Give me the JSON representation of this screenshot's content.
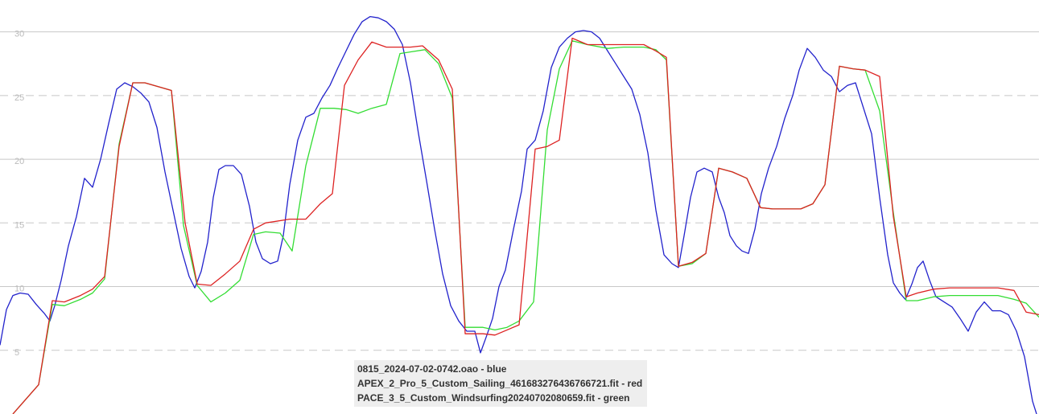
{
  "chart_data": {
    "type": "line",
    "xlim": [
      0,
      1291
    ],
    "ylim": [
      0,
      32.5
    ],
    "grid": {
      "solid": [
        10,
        20,
        30
      ],
      "dashed": [
        5,
        15,
        25
      ]
    },
    "y_ticks": [
      "5",
      "10",
      "15",
      "20",
      "25",
      "30"
    ],
    "y_tick_values": [
      5,
      10,
      15,
      20,
      25,
      30
    ],
    "legend_position": "bottom-center",
    "series": [
      {
        "name": "0815_2024-07-02-0742.oao - blue",
        "color": "#2222cc",
        "points": [
          [
            0,
            5.4
          ],
          [
            8,
            8.2
          ],
          [
            16,
            9.3
          ],
          [
            25,
            9.5
          ],
          [
            35,
            9.4
          ],
          [
            45,
            8.6
          ],
          [
            55,
            7.9
          ],
          [
            62,
            7.3
          ],
          [
            68,
            8.5
          ],
          [
            76,
            10.5
          ],
          [
            85,
            13.2
          ],
          [
            95,
            15.5
          ],
          [
            105,
            18.5
          ],
          [
            115,
            17.8
          ],
          [
            125,
            20
          ],
          [
            135,
            22.8
          ],
          [
            145,
            25.5
          ],
          [
            155,
            26
          ],
          [
            165,
            25.7
          ],
          [
            175,
            25.2
          ],
          [
            185,
            24.5
          ],
          [
            195,
            22.5
          ],
          [
            205,
            19
          ],
          [
            215,
            16
          ],
          [
            225,
            13
          ],
          [
            235,
            10.8
          ],
          [
            242,
            9.9
          ],
          [
            250,
            11.2
          ],
          [
            258,
            13.5
          ],
          [
            265,
            17
          ],
          [
            272,
            19.2
          ],
          [
            280,
            19.5
          ],
          [
            290,
            19.5
          ],
          [
            300,
            18.8
          ],
          [
            310,
            16.3
          ],
          [
            318,
            13.5
          ],
          [
            326,
            12.2
          ],
          [
            336,
            11.8
          ],
          [
            345,
            12
          ],
          [
            352,
            14
          ],
          [
            360,
            18
          ],
          [
            370,
            21.5
          ],
          [
            380,
            23.3
          ],
          [
            390,
            23.6
          ],
          [
            400,
            24.8
          ],
          [
            410,
            25.8
          ],
          [
            420,
            27.2
          ],
          [
            430,
            28.5
          ],
          [
            440,
            29.8
          ],
          [
            450,
            30.8
          ],
          [
            460,
            31.2
          ],
          [
            470,
            31.1
          ],
          [
            480,
            30.8
          ],
          [
            490,
            30.2
          ],
          [
            500,
            29
          ],
          [
            510,
            26
          ],
          [
            520,
            22
          ],
          [
            530,
            18.3
          ],
          [
            540,
            14.5
          ],
          [
            550,
            11
          ],
          [
            560,
            8.5
          ],
          [
            570,
            7.3
          ],
          [
            580,
            6.5
          ],
          [
            590,
            6.5
          ],
          [
            597,
            4.8
          ],
          [
            605,
            6.2
          ],
          [
            612,
            7.5
          ],
          [
            620,
            10
          ],
          [
            628,
            11.3
          ],
          [
            638,
            14.5
          ],
          [
            648,
            17.5
          ],
          [
            655,
            20.8
          ],
          [
            665,
            21.5
          ],
          [
            675,
            23.8
          ],
          [
            685,
            27.2
          ],
          [
            695,
            28.8
          ],
          [
            705,
            29.5
          ],
          [
            715,
            30
          ],
          [
            725,
            30.1
          ],
          [
            735,
            30
          ],
          [
            745,
            29.5
          ],
          [
            755,
            28.5
          ],
          [
            765,
            27.5
          ],
          [
            775,
            26.5
          ],
          [
            785,
            25.5
          ],
          [
            795,
            23.5
          ],
          [
            805,
            20.5
          ],
          [
            815,
            16
          ],
          [
            825,
            12.5
          ],
          [
            835,
            11.8
          ],
          [
            843,
            11.5
          ],
          [
            850,
            14
          ],
          [
            858,
            17
          ],
          [
            866,
            19
          ],
          [
            875,
            19.3
          ],
          [
            885,
            19
          ],
          [
            893,
            17
          ],
          [
            900,
            15.8
          ],
          [
            907,
            14
          ],
          [
            915,
            13.2
          ],
          [
            922,
            12.8
          ],
          [
            930,
            12.6
          ],
          [
            938,
            14.5
          ],
          [
            946,
            17.3
          ],
          [
            955,
            19.3
          ],
          [
            965,
            21
          ],
          [
            975,
            23.2
          ],
          [
            985,
            25
          ],
          [
            993,
            27
          ],
          [
            1003,
            28.7
          ],
          [
            1013,
            28
          ],
          [
            1023,
            27
          ],
          [
            1033,
            26.5
          ],
          [
            1043,
            25.3
          ],
          [
            1053,
            25.8
          ],
          [
            1063,
            26
          ],
          [
            1073,
            24
          ],
          [
            1083,
            22
          ],
          [
            1093,
            17
          ],
          [
            1103,
            12.5
          ],
          [
            1110,
            10.3
          ],
          [
            1118,
            9.5
          ],
          [
            1125,
            9
          ],
          [
            1133,
            10.2
          ],
          [
            1140,
            11.5
          ],
          [
            1147,
            12
          ],
          [
            1155,
            10.5
          ],
          [
            1163,
            9.2
          ],
          [
            1173,
            8.8
          ],
          [
            1183,
            8.4
          ],
          [
            1193,
            7.5
          ],
          [
            1203,
            6.5
          ],
          [
            1213,
            8
          ],
          [
            1223,
            8.8
          ],
          [
            1233,
            8.1
          ],
          [
            1243,
            8.1
          ],
          [
            1253,
            7.8
          ],
          [
            1263,
            6.5
          ],
          [
            1273,
            4.5
          ],
          [
            1283,
            1
          ],
          [
            1288,
            0
          ]
        ]
      },
      {
        "name": "APEX_2_Pro_5_Custom_Sailing_461683276436766721.fit - red",
        "color": "#dd2222",
        "points": [
          [
            16,
            0
          ],
          [
            48,
            2.3
          ],
          [
            65,
            8.9
          ],
          [
            80,
            8.8
          ],
          [
            100,
            9.3
          ],
          [
            115,
            9.8
          ],
          [
            130,
            10.8
          ],
          [
            148,
            21
          ],
          [
            165,
            26
          ],
          [
            180,
            26
          ],
          [
            213,
            25.4
          ],
          [
            230,
            15
          ],
          [
            245,
            10.2
          ],
          [
            262,
            10.1
          ],
          [
            280,
            11
          ],
          [
            298,
            12
          ],
          [
            315,
            14.5
          ],
          [
            330,
            15
          ],
          [
            360,
            15.3
          ],
          [
            380,
            15.3
          ],
          [
            398,
            16.5
          ],
          [
            413,
            17.3
          ],
          [
            428,
            25.8
          ],
          [
            445,
            27.8
          ],
          [
            462,
            29.2
          ],
          [
            480,
            28.8
          ],
          [
            510,
            28.8
          ],
          [
            525,
            28.9
          ],
          [
            545,
            27.8
          ],
          [
            562,
            25.5
          ],
          [
            578,
            6.3
          ],
          [
            600,
            6.3
          ],
          [
            615,
            6.2
          ],
          [
            645,
            7
          ],
          [
            665,
            20.8
          ],
          [
            680,
            21
          ],
          [
            695,
            21.5
          ],
          [
            711,
            29.5
          ],
          [
            730,
            29
          ],
          [
            755,
            29
          ],
          [
            775,
            29
          ],
          [
            800,
            29
          ],
          [
            815,
            28.5
          ],
          [
            828,
            28
          ],
          [
            843,
            11.6
          ],
          [
            860,
            11.9
          ],
          [
            877,
            12.6
          ],
          [
            893,
            19.3
          ],
          [
            910,
            19
          ],
          [
            928,
            18.5
          ],
          [
            945,
            16.2
          ],
          [
            960,
            16.1
          ],
          [
            995,
            16.1
          ],
          [
            1010,
            16.5
          ],
          [
            1025,
            18
          ],
          [
            1043,
            27.3
          ],
          [
            1060,
            27.1
          ],
          [
            1075,
            27
          ],
          [
            1093,
            26.5
          ],
          [
            1110,
            15.5
          ],
          [
            1126,
            9.2
          ],
          [
            1140,
            9.5
          ],
          [
            1160,
            9.8
          ],
          [
            1180,
            9.9
          ],
          [
            1200,
            9.9
          ],
          [
            1240,
            9.9
          ],
          [
            1260,
            9.7
          ],
          [
            1275,
            8
          ],
          [
            1291,
            7.8
          ]
        ]
      },
      {
        "name": "PACE_3_5_Custom_Windsurfing20240702080659.fit - green",
        "color": "#33dd33",
        "points": [
          [
            16,
            0
          ],
          [
            48,
            2.3
          ],
          [
            65,
            8.6
          ],
          [
            80,
            8.5
          ],
          [
            100,
            9
          ],
          [
            115,
            9.5
          ],
          [
            130,
            10.6
          ],
          [
            148,
            21.2
          ],
          [
            165,
            26
          ],
          [
            180,
            26
          ],
          [
            213,
            25.4
          ],
          [
            228,
            14.8
          ],
          [
            245,
            10.1
          ],
          [
            262,
            8.8
          ],
          [
            280,
            9.5
          ],
          [
            298,
            10.5
          ],
          [
            315,
            14.1
          ],
          [
            330,
            14.3
          ],
          [
            348,
            14.2
          ],
          [
            363,
            12.8
          ],
          [
            380,
            19.5
          ],
          [
            398,
            24
          ],
          [
            415,
            24
          ],
          [
            430,
            23.9
          ],
          [
            445,
            23.6
          ],
          [
            462,
            24
          ],
          [
            480,
            24.3
          ],
          [
            497,
            28.3
          ],
          [
            528,
            28.6
          ],
          [
            545,
            27.5
          ],
          [
            562,
            24.8
          ],
          [
            578,
            6.8
          ],
          [
            600,
            6.8
          ],
          [
            615,
            6.6
          ],
          [
            630,
            6.8
          ],
          [
            645,
            7.3
          ],
          [
            663,
            8.8
          ],
          [
            680,
            22.3
          ],
          [
            695,
            27.1
          ],
          [
            711,
            29.3
          ],
          [
            730,
            29
          ],
          [
            755,
            28.7
          ],
          [
            775,
            28.8
          ],
          [
            800,
            28.8
          ],
          [
            815,
            28.6
          ],
          [
            828,
            27.8
          ],
          [
            843,
            11.6
          ],
          [
            860,
            11.8
          ],
          [
            877,
            12.6
          ],
          [
            893,
            19.3
          ],
          [
            910,
            19
          ],
          [
            928,
            18.5
          ],
          [
            945,
            16.2
          ],
          [
            960,
            16.1
          ],
          [
            995,
            16.1
          ],
          [
            1010,
            16.5
          ],
          [
            1025,
            18
          ],
          [
            1043,
            27.3
          ],
          [
            1060,
            27.1
          ],
          [
            1075,
            27
          ],
          [
            1093,
            23.8
          ],
          [
            1110,
            15.8
          ],
          [
            1126,
            8.9
          ],
          [
            1140,
            8.9
          ],
          [
            1160,
            9.2
          ],
          [
            1180,
            9.3
          ],
          [
            1200,
            9.3
          ],
          [
            1240,
            9.3
          ],
          [
            1260,
            9
          ],
          [
            1275,
            8.7
          ],
          [
            1291,
            7.6
          ]
        ]
      }
    ]
  }
}
